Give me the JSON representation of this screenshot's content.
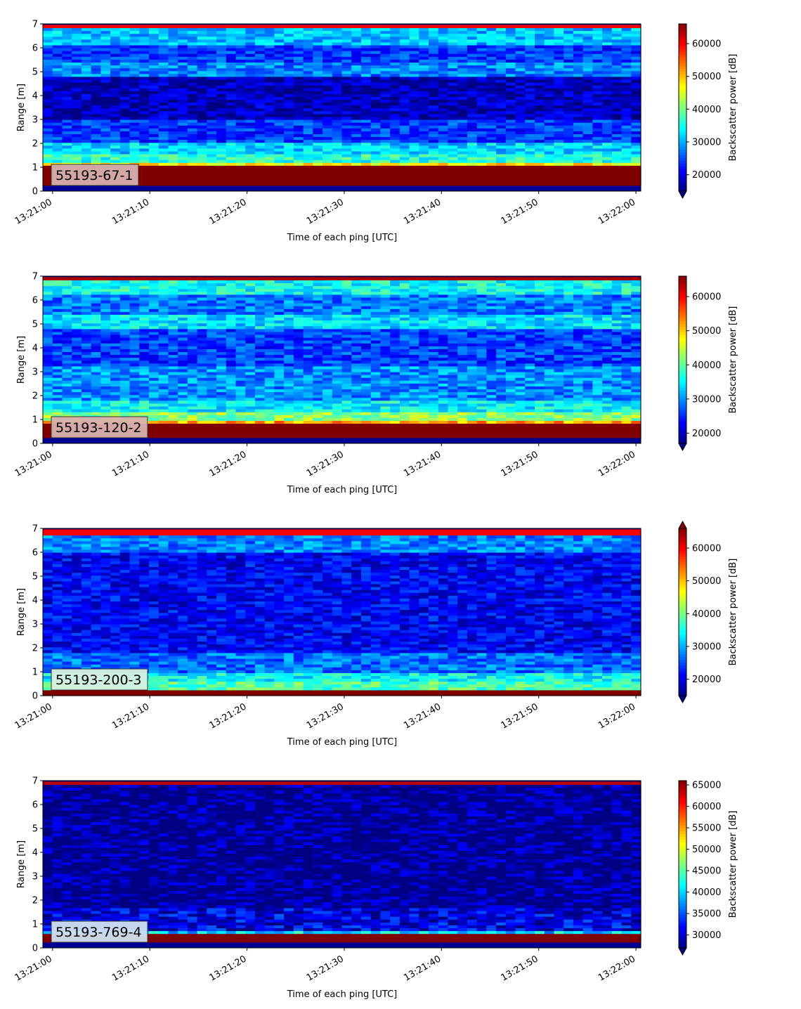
{
  "chart_data": [
    {
      "type": "heatmap",
      "panel_label": "55193-67-1",
      "xlabel": "Time of each ping [UTC]",
      "ylabel": "Range [m]",
      "colorbar_label": "Backscatter power [dB]",
      "colorbar_ticks": [
        "20000",
        "30000",
        "40000",
        "50000",
        "60000"
      ],
      "colorbar_range": [
        15000,
        66000
      ],
      "colorbar_extend": "min",
      "x_ticks": [
        "13:21:00",
        "13:21:10",
        "13:21:20",
        "13:21:30",
        "13:21:40",
        "13:21:50",
        "13:22:00"
      ],
      "y_ticks": [
        "0",
        "1",
        "2",
        "3",
        "4",
        "5",
        "6",
        "7"
      ],
      "ylim": [
        0,
        7
      ],
      "xlim": [
        "13:20:59",
        "13:22:00.5"
      ],
      "colormap": "jet",
      "label_box_color": "#d8b0b0",
      "range_profile": [
        {
          "range": [
            0.2,
            1.1
          ],
          "value": 66000
        },
        {
          "range": [
            1.1,
            1.25
          ],
          "value": 48000
        },
        {
          "range": [
            1.25,
            1.6
          ],
          "value": 36000
        },
        {
          "range": [
            1.6,
            2.0
          ],
          "value": 32000
        },
        {
          "range": [
            2.0,
            3.0
          ],
          "value": 24000
        },
        {
          "range": [
            3.0,
            4.8
          ],
          "value": 18000
        },
        {
          "range": [
            4.8,
            5.4
          ],
          "value": 28000
        },
        {
          "range": [
            5.4,
            6.1
          ],
          "value": 24000
        },
        {
          "range": [
            6.1,
            6.8
          ],
          "value": 31000
        },
        {
          "range": [
            6.8,
            7.0
          ],
          "value": 60000
        }
      ]
    },
    {
      "type": "heatmap",
      "panel_label": "55193-120-2",
      "xlabel": "Time of each ping [UTC]",
      "ylabel": "Range [m]",
      "colorbar_label": "Backscatter power [dB]",
      "colorbar_ticks": [
        "20000",
        "30000",
        "40000",
        "50000",
        "60000"
      ],
      "colorbar_range": [
        17000,
        66000
      ],
      "colorbar_extend": "min",
      "x_ticks": [
        "13:21:00",
        "13:21:10",
        "13:21:20",
        "13:21:30",
        "13:21:40",
        "13:21:50",
        "13:22:00"
      ],
      "y_ticks": [
        "0",
        "1",
        "2",
        "3",
        "4",
        "5",
        "6",
        "7"
      ],
      "ylim": [
        0,
        7
      ],
      "xlim": [
        "13:20:59",
        "13:22:00.5"
      ],
      "colormap": "jet",
      "label_box_color": "#d8b0b0",
      "range_profile": [
        {
          "range": [
            0.2,
            0.8
          ],
          "value": 66000
        },
        {
          "range": [
            0.8,
            1.0
          ],
          "value": 52000
        },
        {
          "range": [
            1.0,
            1.3
          ],
          "value": 42000
        },
        {
          "range": [
            1.3,
            1.8
          ],
          "value": 35000
        },
        {
          "range": [
            1.8,
            3.2
          ],
          "value": 30000
        },
        {
          "range": [
            3.2,
            4.8
          ],
          "value": 26000
        },
        {
          "range": [
            4.8,
            5.4
          ],
          "value": 34000
        },
        {
          "range": [
            5.4,
            6.2
          ],
          "value": 29000
        },
        {
          "range": [
            6.2,
            6.9
          ],
          "value": 36000
        },
        {
          "range": [
            6.9,
            7.0
          ],
          "value": 64000
        }
      ]
    },
    {
      "type": "heatmap",
      "panel_label": "55193-200-3",
      "xlabel": "Time of each ping [UTC]",
      "ylabel": "Range [m]",
      "colorbar_label": "Backscatter power [dB]",
      "colorbar_ticks": [
        "20000",
        "30000",
        "40000",
        "50000",
        "60000"
      ],
      "colorbar_range": [
        15000,
        66000
      ],
      "colorbar_extend": "both",
      "x_ticks": [
        "13:21:00",
        "13:21:10",
        "13:21:20",
        "13:21:30",
        "13:21:40",
        "13:21:50",
        "13:22:00"
      ],
      "y_ticks": [
        "0",
        "1",
        "2",
        "3",
        "4",
        "5",
        "6",
        "7"
      ],
      "ylim": [
        0,
        7
      ],
      "xlim": [
        "13:20:59",
        "13:22:00.5"
      ],
      "colormap": "jet",
      "label_box_color": "#d8f0e0",
      "range_profile": [
        {
          "range": [
            0.0,
            0.3
          ],
          "value": 66000
        },
        {
          "range": [
            0.3,
            0.6
          ],
          "value": 38000
        },
        {
          "range": [
            0.6,
            1.0
          ],
          "value": 34000
        },
        {
          "range": [
            1.0,
            1.8
          ],
          "value": 27000
        },
        {
          "range": [
            1.8,
            6.0
          ],
          "value": 21000
        },
        {
          "range": [
            6.0,
            6.7
          ],
          "value": 28000
        },
        {
          "range": [
            6.7,
            7.0
          ],
          "value": 60000
        }
      ]
    },
    {
      "type": "heatmap",
      "panel_label": "55193-769-4",
      "xlabel": "Time of each ping [UTC]",
      "ylabel": "Range [m]",
      "colorbar_label": "Backscatter power [dB]",
      "colorbar_ticks": [
        "30000",
        "35000",
        "40000",
        "45000",
        "50000",
        "55000",
        "60000",
        "65000"
      ],
      "colorbar_range": [
        27000,
        66000
      ],
      "colorbar_extend": "min",
      "x_ticks": [
        "13:21:00",
        "13:21:10",
        "13:21:20",
        "13:21:30",
        "13:21:40",
        "13:21:50",
        "13:22:00"
      ],
      "y_ticks": [
        "0",
        "1",
        "2",
        "3",
        "4",
        "5",
        "6",
        "7"
      ],
      "ylim": [
        0,
        7
      ],
      "xlim": [
        "13:20:59",
        "13:22:00.5"
      ],
      "colormap": "jet",
      "label_box_color": "#d0e0f0",
      "range_profile": [
        {
          "range": [
            0.2,
            0.65
          ],
          "value": 66000
        },
        {
          "range": [
            0.65,
            0.75
          ],
          "value": 40000
        },
        {
          "range": [
            0.75,
            1.7
          ],
          "value": 31000
        },
        {
          "range": [
            1.7,
            6.9
          ],
          "value": 27500
        },
        {
          "range": [
            6.9,
            7.0
          ],
          "value": 64000
        }
      ]
    }
  ]
}
